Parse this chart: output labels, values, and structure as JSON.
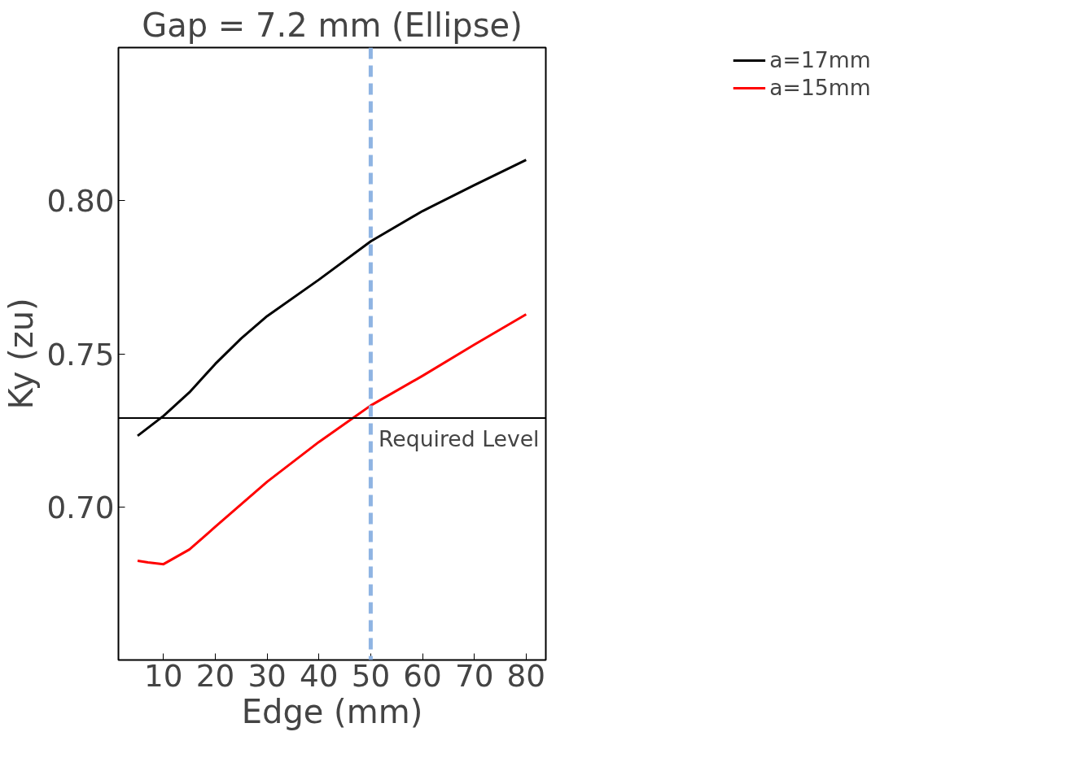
{
  "chart_data": {
    "type": "line",
    "title": "Gap = 7.2 mm (Ellipse)",
    "xlabel": "Edge (mm)",
    "ylabel": "Ky (zu)",
    "xlim": [
      1.3,
      83.8
    ],
    "ylim": [
      0.65,
      0.85
    ],
    "xticks": [
      10,
      20,
      30,
      40,
      50,
      60,
      70,
      80
    ],
    "yticks": [
      {
        "value": 0.7,
        "label": "0.70"
      },
      {
        "value": 0.75,
        "label": "0.75"
      },
      {
        "value": 0.8,
        "label": "0.80"
      }
    ],
    "grid": false,
    "legend": "top right",
    "line_style": "solid",
    "series": [
      {
        "name": "a=17mm",
        "color": "#000000",
        "x": [
          5,
          10,
          15,
          20,
          25,
          30,
          40,
          50,
          60,
          70,
          80
        ],
        "values": [
          0.7232,
          0.7297,
          0.7374,
          0.7467,
          0.755,
          0.7623,
          0.7742,
          0.7867,
          0.7966,
          0.8051,
          0.8133
        ]
      },
      {
        "name": "a=15mm",
        "color": "#ff0000",
        "x": [
          5,
          7,
          10,
          15,
          20,
          30,
          40,
          50,
          60,
          70,
          80
        ],
        "values": [
          0.6824,
          0.6819,
          0.6813,
          0.6861,
          0.6935,
          0.7082,
          0.7212,
          0.7331,
          0.7428,
          0.753,
          0.7629
        ]
      }
    ],
    "ref_lines": [
      {
        "axis": "y",
        "value": 0.729,
        "label": "Required Level",
        "color": "#000000",
        "line_style": "solid"
      },
      {
        "axis": "x",
        "value": 50,
        "label": null,
        "color": "#8fb4e3",
        "line_style": "dashed"
      }
    ]
  }
}
